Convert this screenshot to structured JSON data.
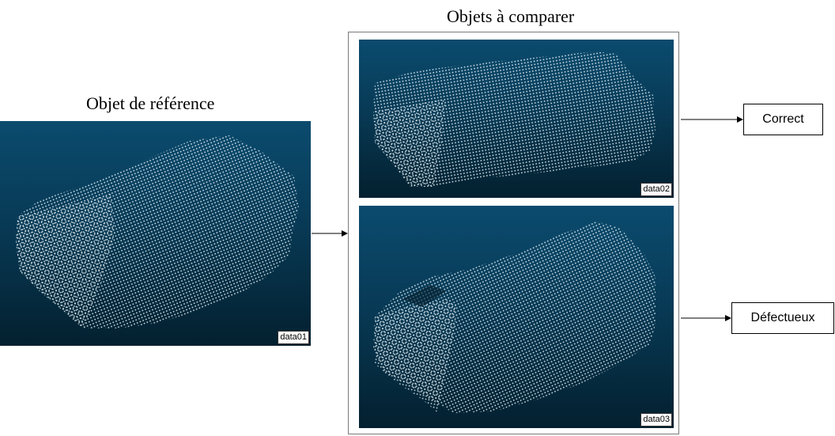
{
  "reference_title": "Objet de référence",
  "compare_title": "Objets à comparer",
  "panels": {
    "reference_label": "data01",
    "compare_top_label": "data02",
    "compare_bottom_label": "data03"
  },
  "results": {
    "top": "Correct",
    "bottom": "Défectueux"
  },
  "colors": {
    "panel_top": "#0b4b6e",
    "panel_bottom": "#03202f",
    "points": "#e6f2f7"
  }
}
